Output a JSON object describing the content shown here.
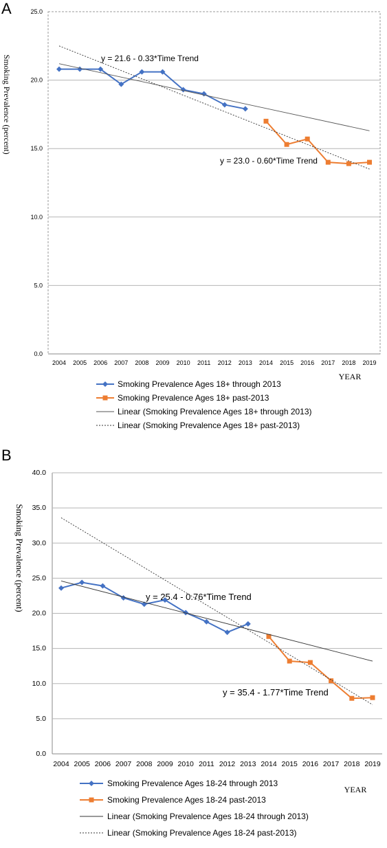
{
  "chart_data": [
    {
      "panel_label": "A",
      "type": "line",
      "ylabel": "Smoking Prevalence (percent)",
      "xlabel": "YEAR",
      "ylim": [
        0,
        25
      ],
      "y_ticks": [
        "0.0",
        "5.0",
        "10.0",
        "15.0",
        "20.0",
        "25.0"
      ],
      "x_ticks": [
        "2004",
        "2005",
        "2006",
        "2007",
        "2008",
        "2009",
        "2010",
        "2011",
        "2012",
        "2013",
        "2014",
        "2015",
        "2016",
        "2017",
        "2018",
        "2019"
      ],
      "grid": "horizontal",
      "legend_position": "bottom",
      "series": [
        {
          "name": "Smoking Prevalence Ages 18+ through 2013",
          "color": "#4472c4",
          "marker": "diamond",
          "x": [
            2004,
            2005,
            2006,
            2007,
            2008,
            2009,
            2010,
            2011,
            2012,
            2013
          ],
          "values": [
            20.8,
            20.8,
            20.8,
            19.7,
            20.6,
            20.6,
            19.3,
            19.0,
            18.2,
            17.9
          ]
        },
        {
          "name": "Smoking Prevalence Ages 18+ past-2013",
          "color": "#ed7d31",
          "marker": "square",
          "x": [
            2014,
            2015,
            2016,
            2017,
            2018,
            2019
          ],
          "values": [
            17.0,
            15.3,
            15.7,
            14.0,
            13.9,
            14.0
          ]
        },
        {
          "name": "Linear (Smoking Prevalence Ages 18+ through 2013)",
          "style": "solid",
          "color": "#555555",
          "x": [
            2004,
            2019
          ],
          "values": [
            21.2,
            16.3
          ]
        },
        {
          "name": "Linear (Smoking Prevalence Ages 18+ past-2013)",
          "style": "dotted",
          "color": "#333333",
          "x": [
            2004,
            2019
          ],
          "values": [
            22.5,
            13.5
          ]
        }
      ],
      "annotations": [
        "y = 21.6 - 0.33*Time Trend",
        "y = 23.0 - 0.60*Time Trend"
      ]
    },
    {
      "panel_label": "B",
      "type": "line",
      "ylabel": "Smoking Prevalence (percent)",
      "xlabel": "YEAR",
      "ylim": [
        0,
        40
      ],
      "y_ticks": [
        "0.0",
        "5.0",
        "10.0",
        "15.0",
        "20.0",
        "25.0",
        "30.0",
        "35.0",
        "40.0"
      ],
      "x_ticks": [
        "2004",
        "2005",
        "2006",
        "2007",
        "2008",
        "2009",
        "2010",
        "2011",
        "2012",
        "2013",
        "2014",
        "2015",
        "2016",
        "2017",
        "2018",
        "2019"
      ],
      "grid": "horizontal",
      "legend_position": "bottom",
      "series": [
        {
          "name": "Smoking Prevalence Ages 18-24 through 2013",
          "color": "#4472c4",
          "marker": "diamond",
          "x": [
            2004,
            2005,
            2006,
            2007,
            2008,
            2009,
            2010,
            2011,
            2012,
            2013
          ],
          "values": [
            23.6,
            24.4,
            23.9,
            22.2,
            21.3,
            21.9,
            20.1,
            18.8,
            17.3,
            18.5
          ]
        },
        {
          "name": "Smoking Prevalence Ages 18-24 past-2013",
          "color": "#ed7d31",
          "marker": "square",
          "x": [
            2014,
            2015,
            2016,
            2017,
            2018,
            2019
          ],
          "values": [
            16.7,
            13.2,
            13.0,
            10.4,
            7.9,
            8.0
          ]
        },
        {
          "name": "Linear (Smoking Prevalence Ages 18-24 through 2013)",
          "style": "solid",
          "color": "#333333",
          "x": [
            2004,
            2019
          ],
          "values": [
            24.6,
            13.2
          ]
        },
        {
          "name": "Linear (Smoking Prevalence Ages 18-24 past-2013)",
          "style": "dotted",
          "color": "#333333",
          "x": [
            2004,
            2019
          ],
          "values": [
            33.6,
            7.0
          ]
        }
      ],
      "annotations": [
        "y = 25.4 - 0.76*Time Trend",
        "y = 35.4 - 1.77*Time Trend"
      ]
    }
  ]
}
